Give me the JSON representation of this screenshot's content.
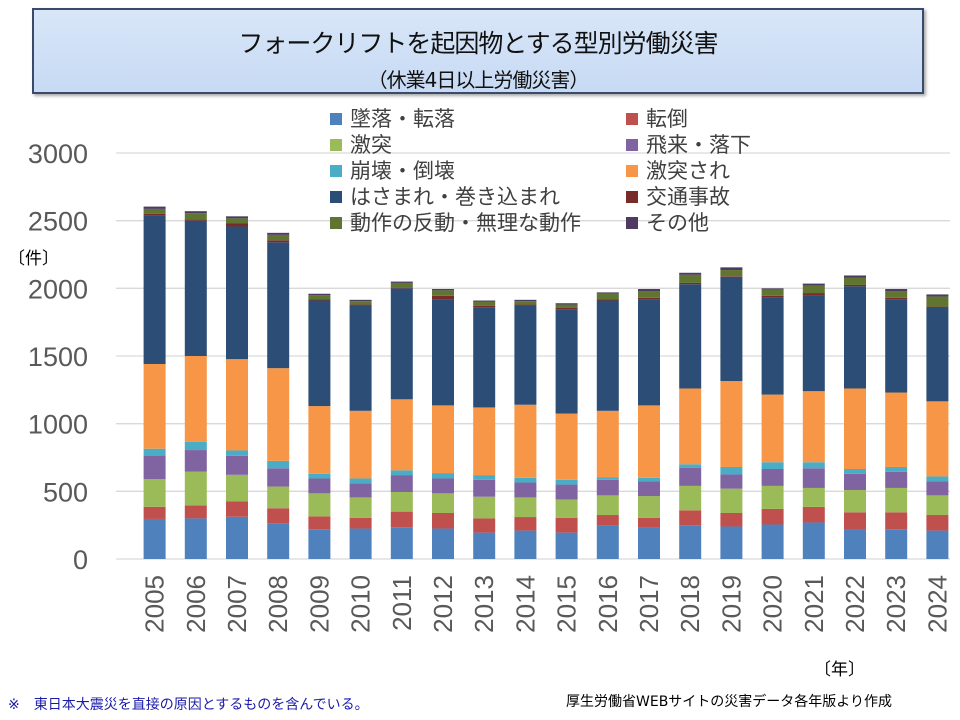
{
  "header": {
    "title": "フォークリフトを起因物とする型別労働災害",
    "subtitle": "（休業4日以上労働災害）"
  },
  "units": {
    "y": "〔件〕",
    "x": "〔年〕"
  },
  "footer": {
    "note": "※　東日本大震災を直接の原因とするものを含んでいる。",
    "source": "厚生労働省WEBサイトの災害データ各年版より作成"
  },
  "chart_data": {
    "type": "bar",
    "stacked": true,
    "title": "フォークリフトを起因物とする型別労働災害（休業4日以上労働災害）",
    "xlabel": "〔年〕",
    "ylabel": "〔件〕",
    "ylim": [
      0,
      3000
    ],
    "yticks": [
      0,
      500,
      1000,
      1500,
      2000,
      2500,
      3000
    ],
    "grid": true,
    "legend_position": "top",
    "categories": [
      "2005",
      "2006",
      "2007",
      "2008",
      "2009",
      "2010",
      "2011",
      "2012",
      "2013",
      "2014",
      "2015",
      "2016",
      "2017",
      "2018",
      "2019",
      "2020",
      "2021",
      "2022",
      "2023",
      "2024"
    ],
    "series": [
      {
        "name": "墜落・転落",
        "color": "#4f81bd",
        "values": [
          296,
          300,
          312,
          265,
          220,
          225,
          235,
          225,
          195,
          210,
          195,
          245,
          230,
          250,
          240,
          255,
          270,
          215,
          220,
          210
        ]
      },
      {
        "name": "転倒",
        "color": "#c0504d",
        "values": [
          90,
          95,
          115,
          110,
          95,
          80,
          115,
          115,
          105,
          100,
          110,
          80,
          75,
          110,
          100,
          115,
          115,
          130,
          125,
          115
        ]
      },
      {
        "name": "激突",
        "color": "#9bbb59",
        "values": [
          205,
          250,
          195,
          160,
          170,
          150,
          145,
          145,
          160,
          145,
          135,
          145,
          160,
          180,
          180,
          170,
          140,
          165,
          180,
          145
        ]
      },
      {
        "name": "飛来・落下",
        "color": "#8064a2",
        "values": [
          173,
          160,
          140,
          135,
          110,
          105,
          125,
          110,
          125,
          110,
          110,
          115,
          110,
          135,
          105,
          125,
          145,
          120,
          120,
          105
        ]
      },
      {
        "name": "崩壊・倒壊",
        "color": "#4bacc6",
        "values": [
          51,
          60,
          40,
          55,
          35,
          35,
          35,
          40,
          35,
          35,
          35,
          20,
          25,
          25,
          55,
          50,
          45,
          35,
          35,
          35
        ]
      },
      {
        "name": "激突され",
        "color": "#f79646",
        "values": [
          626,
          635,
          675,
          685,
          500,
          500,
          525,
          500,
          500,
          540,
          490,
          490,
          535,
          560,
          635,
          500,
          525,
          595,
          550,
          555
        ]
      },
      {
        "name": "はさまれ・巻き込まれ",
        "color": "#2c4d75",
        "values": [
          1096,
          1000,
          980,
          930,
          780,
          775,
          820,
          780,
          740,
          730,
          770,
          815,
          780,
          770,
          770,
          720,
          710,
          755,
          690,
          690
        ]
      },
      {
        "name": "交通事故",
        "color": "#772c2a",
        "values": [
          13,
          10,
          25,
          15,
          10,
          10,
          5,
          30,
          10,
          10,
          10,
          10,
          15,
          10,
          5,
          10,
          15,
          10,
          10,
          10
        ]
      },
      {
        "name": "動作の反動・無理な動作",
        "color": "#5f7530",
        "values": [
          37,
          45,
          35,
          40,
          30,
          25,
          35,
          40,
          30,
          25,
          25,
          40,
          50,
          60,
          45,
          45,
          55,
          55,
          50,
          75
        ]
      },
      {
        "name": "その他",
        "color": "#4d3b62",
        "values": [
          17,
          15,
          15,
          15,
          10,
          10,
          10,
          10,
          10,
          10,
          10,
          10,
          15,
          15,
          20,
          10,
          15,
          15,
          15,
          15
        ]
      }
    ]
  }
}
